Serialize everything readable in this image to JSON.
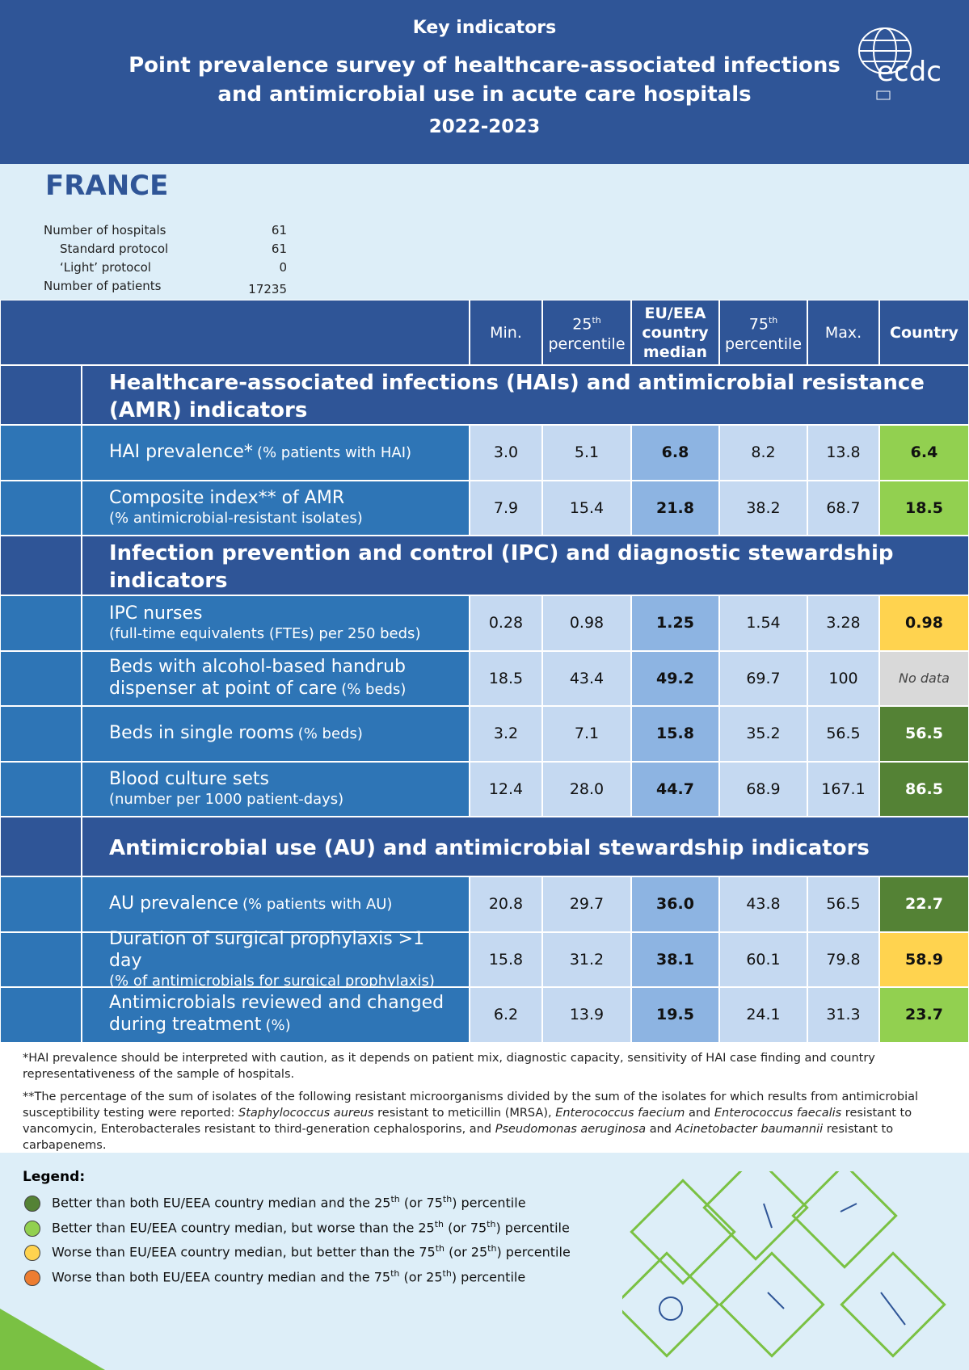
{
  "header": {
    "subtitle": "Key indicators",
    "title_lines": [
      "Point prevalence survey of healthcare-associated infections",
      "and antimicrobial use in acute care hospitals"
    ],
    "years": "2022-2023",
    "logo": "ecdc"
  },
  "country": "FRANCE",
  "stats": [
    {
      "label": "Number of hospitals",
      "value": 61,
      "indent": false
    },
    {
      "label": "Standard protocol",
      "value": 61,
      "indent": true
    },
    {
      "label": "‘Light’ protocol",
      "value": 0,
      "indent": true
    },
    {
      "label": "Number of patients",
      "value": 17235,
      "indent": false
    }
  ],
  "table": {
    "columns": [
      {
        "text": "Min."
      },
      {
        "text": "25",
        "sup": "th",
        "line2": "percentile"
      },
      {
        "text": "EU/EEA country median",
        "bold": true
      },
      {
        "text": "75",
        "sup": "th",
        "line2": "percentile"
      },
      {
        "text": "Max."
      },
      {
        "text": "Country",
        "bold": true
      }
    ],
    "sections": [
      {
        "title": "Healthcare-associated infections (HAIs) and antimicrobial resistance (AMR) indicators",
        "rows": [
          {
            "label": "HAI prevalence*",
            "note": "(% patients with HAI)",
            "note_new_line": false,
            "values": [
              "3.0",
              "5.1",
              "6.8",
              "8.2",
              "13.8"
            ],
            "country": "6.4",
            "color": "#92d050"
          },
          {
            "label": "Composite index** of AMR",
            "note": "(% antimicrobial-resistant isolates)",
            "note_new_line": true,
            "values": [
              "7.9",
              "15.4",
              "21.8",
              "38.2",
              "68.7"
            ],
            "country": "18.5",
            "color": "#92d050"
          }
        ]
      },
      {
        "title": "Infection prevention and control (IPC) and diagnostic stewardship indicators",
        "rows": [
          {
            "label": "IPC nurses",
            "note": "(full-time equivalents (FTEs) per 250 beds)",
            "note_new_line": true,
            "values": [
              "0.28",
              "0.98",
              "1.25",
              "1.54",
              "3.28"
            ],
            "country": "0.98",
            "color": "#ffd34f"
          },
          {
            "label": "Beds with alcohol-based handrub dispenser at point of care",
            "note": "(% beds)",
            "note_new_line": false,
            "values": [
              "18.5",
              "43.4",
              "49.2",
              "69.7",
              "100"
            ],
            "country": "No data",
            "color": "#d9d9d9"
          },
          {
            "label": "Beds in single rooms",
            "note": "(% beds)",
            "note_new_line": false,
            "values": [
              "3.2",
              "7.1",
              "15.8",
              "35.2",
              "56.5"
            ],
            "country": "56.5",
            "color": "#548235"
          },
          {
            "label": "Blood culture sets",
            "note": "(number per 1000 patient-days)",
            "note_new_line": true,
            "values": [
              "12.4",
              "28.0",
              "44.7",
              "68.9",
              "167.1"
            ],
            "country": "86.5",
            "color": "#548235"
          }
        ]
      },
      {
        "title": "Antimicrobial use (AU) and antimicrobial stewardship indicators",
        "rows": [
          {
            "label": "AU prevalence",
            "note": "(% patients with AU)",
            "note_new_line": false,
            "values": [
              "20.8",
              "29.7",
              "36.0",
              "43.8",
              "56.5"
            ],
            "country": "22.7",
            "color": "#548235"
          },
          {
            "label": "Duration of surgical prophylaxis >1 day",
            "note": "(% of antimicrobials for surgical prophylaxis)",
            "note_new_line": true,
            "values": [
              "15.8",
              "31.2",
              "38.1",
              "60.1",
              "79.8"
            ],
            "country": "58.9",
            "color": "#ffd34f"
          },
          {
            "label": "Antimicrobials reviewed and changed during treatment",
            "note": "(%)",
            "note_new_line": false,
            "values": [
              "6.2",
              "13.9",
              "19.5",
              "24.1",
              "31.3"
            ],
            "country": "23.7",
            "color": "#92d050"
          }
        ]
      }
    ]
  },
  "footnotes": [
    [
      {
        "text": "*HAI prevalence should be interpreted with caution, as it depends on patient mix, diagnostic capacity, sensitivity of HAI case finding and country representativeness of the sample of hospitals.",
        "italic": false
      }
    ],
    [
      {
        "text": "**The percentage of the sum of isolates of the following resistant microorganisms divided by the sum of the isolates for which results from antimicrobial susceptibility testing were reported: ",
        "italic": false
      },
      {
        "text": "Staphylococcus aureus",
        "italic": true
      },
      {
        "text": " resistant to meticillin (MRSA), ",
        "italic": false
      },
      {
        "text": "Enterococcus faecium",
        "italic": true
      },
      {
        "text": " and ",
        "italic": false
      },
      {
        "text": "Enterococcus faecalis",
        "italic": true
      },
      {
        "text": " resistant to vancomycin, Enterobacterales resistant to third-generation cephalosporins, and ",
        "italic": false
      },
      {
        "text": "Pseudomonas aeruginosa",
        "italic": true
      },
      {
        "text": " and ",
        "italic": false
      },
      {
        "text": "Acinetobacter baumannii",
        "italic": true
      },
      {
        "text": " resistant to carbapenems.",
        "italic": false
      }
    ]
  ],
  "legend": {
    "title": "Legend:",
    "items": [
      {
        "color": "#548235",
        "text": [
          "Better than both EU/EEA country median and the 25",
          " (or 75",
          ") percentile"
        ],
        "sup": [
          "th",
          "th"
        ]
      },
      {
        "color": "#92d050",
        "text": [
          "Better than EU/EEA country median, but worse than the 25",
          " (or 75",
          ") percentile"
        ],
        "sup": [
          "th",
          "th"
        ]
      },
      {
        "color": "#ffd34f",
        "text": [
          "Worse than EU/EEA country median, but better than the 75",
          " (or 25",
          ") percentile"
        ],
        "sup": [
          "th",
          "th"
        ]
      },
      {
        "color": "#ed7d31",
        "text": [
          "Worse than both EU/EEA country median and the 75",
          " (or 25",
          ") percentile"
        ],
        "sup": [
          "th",
          "th"
        ]
      }
    ]
  }
}
